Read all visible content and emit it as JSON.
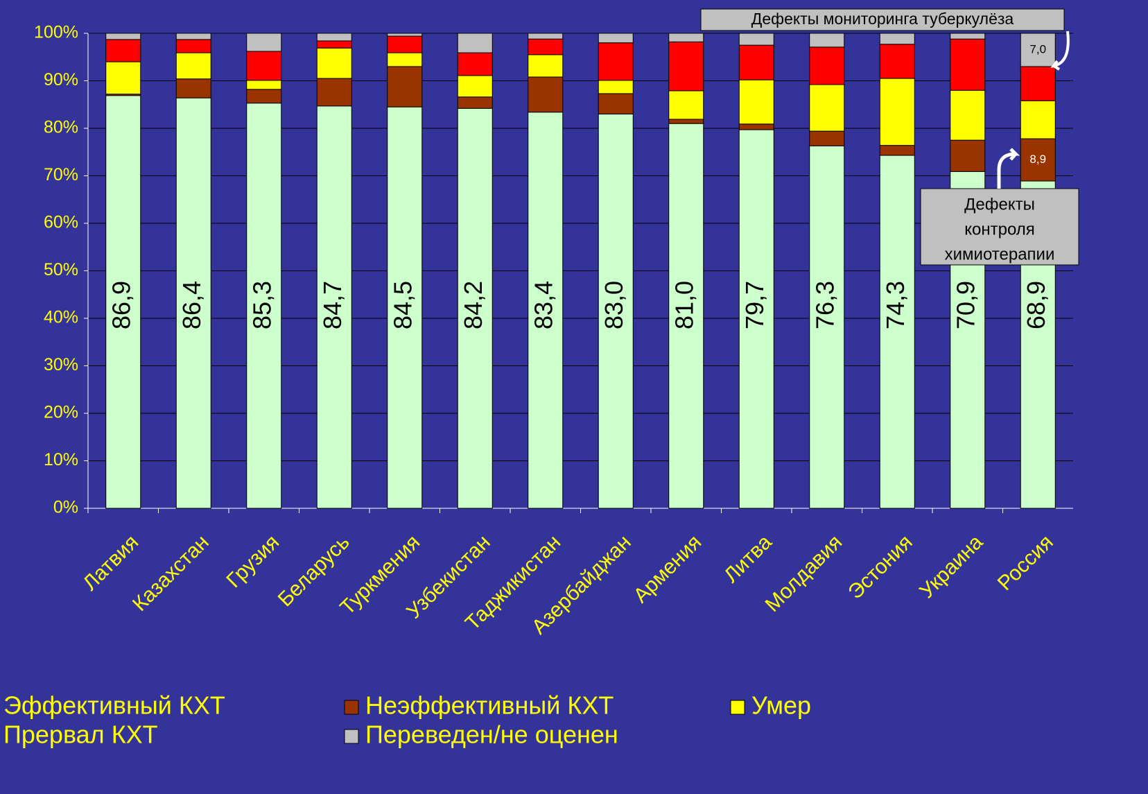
{
  "chart_data": {
    "type": "stacked_bar",
    "categories": [
      "Латвия",
      "Казахстан",
      "Грузия",
      "Беларусь",
      "Туркмения",
      "Узбекистан",
      "Таджикистан",
      "Азербайджан",
      "Армения",
      "Литва",
      "Молдавия",
      "Эстония",
      "Украина",
      "Россия"
    ],
    "series": [
      {
        "name": "Эффективный КХТ",
        "color": "#ccffcc",
        "values": [
          86.9,
          86.4,
          85.3,
          84.7,
          84.5,
          84.2,
          83.4,
          83.0,
          81.0,
          79.7,
          76.3,
          74.3,
          70.9,
          68.9
        ],
        "value_labels": [
          "86,9",
          "86,4",
          "85,3",
          "84,7",
          "84,5",
          "84,2",
          "83,4",
          "83,0",
          "81,0",
          "79,7",
          "76,3",
          "74,3",
          "70,9",
          "68,9"
        ]
      },
      {
        "name": "Неэффективный КХТ",
        "color": "#993300",
        "values": [
          0.3,
          4.0,
          2.9,
          5.8,
          8.5,
          2.4,
          7.4,
          4.3,
          0.9,
          1.2,
          3.1,
          2.1,
          6.6,
          8.9
        ],
        "value_labels": [
          null,
          null,
          null,
          null,
          null,
          null,
          null,
          null,
          null,
          null,
          null,
          null,
          null,
          "8,9"
        ]
      },
      {
        "name": "Умер",
        "color": "#ffff00",
        "values": [
          6.8,
          5.5,
          1.9,
          6.4,
          2.9,
          4.5,
          4.7,
          2.8,
          6.0,
          9.3,
          9.8,
          14.1,
          10.5,
          8.0
        ]
      },
      {
        "name": "Прервал КХТ",
        "color": "#ff0000",
        "values": [
          4.7,
          2.8,
          6.1,
          1.5,
          3.5,
          4.8,
          3.3,
          7.9,
          10.3,
          7.3,
          7.9,
          7.2,
          10.8,
          7.2
        ]
      },
      {
        "name": "Переведен/не оценен",
        "color": "#c0c0c0",
        "values": [
          1.3,
          1.3,
          3.8,
          1.6,
          0.6,
          4.1,
          1.2,
          2.0,
          1.8,
          2.5,
          2.9,
          2.3,
          1.2,
          7.0
        ],
        "value_labels": [
          null,
          null,
          null,
          null,
          null,
          null,
          null,
          null,
          null,
          null,
          null,
          null,
          null,
          "7,0"
        ]
      }
    ],
    "ylim": [
      0,
      100
    ],
    "yticks": [
      {
        "value": 0,
        "label": "0%"
      },
      {
        "value": 10,
        "label": "10%"
      },
      {
        "value": 20,
        "label": "20%"
      },
      {
        "value": 30,
        "label": "30%"
      },
      {
        "value": 40,
        "label": "40%"
      },
      {
        "value": 50,
        "label": "50%"
      },
      {
        "value": 60,
        "label": "60%"
      },
      {
        "value": 70,
        "label": "70%"
      },
      {
        "value": 80,
        "label": "80%"
      },
      {
        "value": 90,
        "label": "90%"
      },
      {
        "value": 100,
        "label": "100%"
      }
    ],
    "grid": true,
    "annotations": [
      {
        "lines": [
          "Дефекты мониторинга туберкулёза"
        ]
      },
      {
        "lines": [
          "Дефекты",
          "контроля",
          "химиотерапии"
        ]
      }
    ]
  }
}
